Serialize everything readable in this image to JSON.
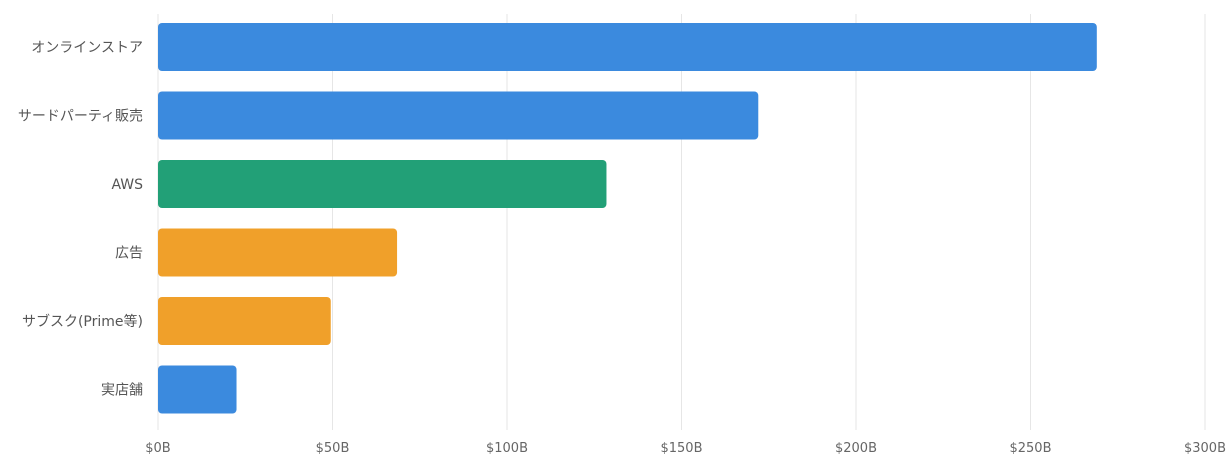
{
  "chart_data": {
    "type": "bar",
    "orientation": "horizontal",
    "categories": [
      "オンラインストア",
      "サードパーティ販売",
      "AWS",
      "広告",
      "サブスク(Prime等)",
      "実店舗"
    ],
    "values": [
      269,
      172,
      128.5,
      68.5,
      49.5,
      22.5
    ],
    "unit": "B USD",
    "bar_colors": [
      "#3b8ade",
      "#3b8ade",
      "#22a077",
      "#f0a02a",
      "#f0a02a",
      "#3b8ade"
    ],
    "xlim": [
      0,
      300
    ],
    "x_ticks": [
      0,
      50,
      100,
      150,
      200,
      250,
      300
    ],
    "x_tick_labels": [
      "$0B",
      "$50B",
      "$100B",
      "$150B",
      "$200B",
      "$250B",
      "$300B"
    ],
    "grid": "vertical",
    "title": "",
    "xlabel": "",
    "ylabel": ""
  }
}
